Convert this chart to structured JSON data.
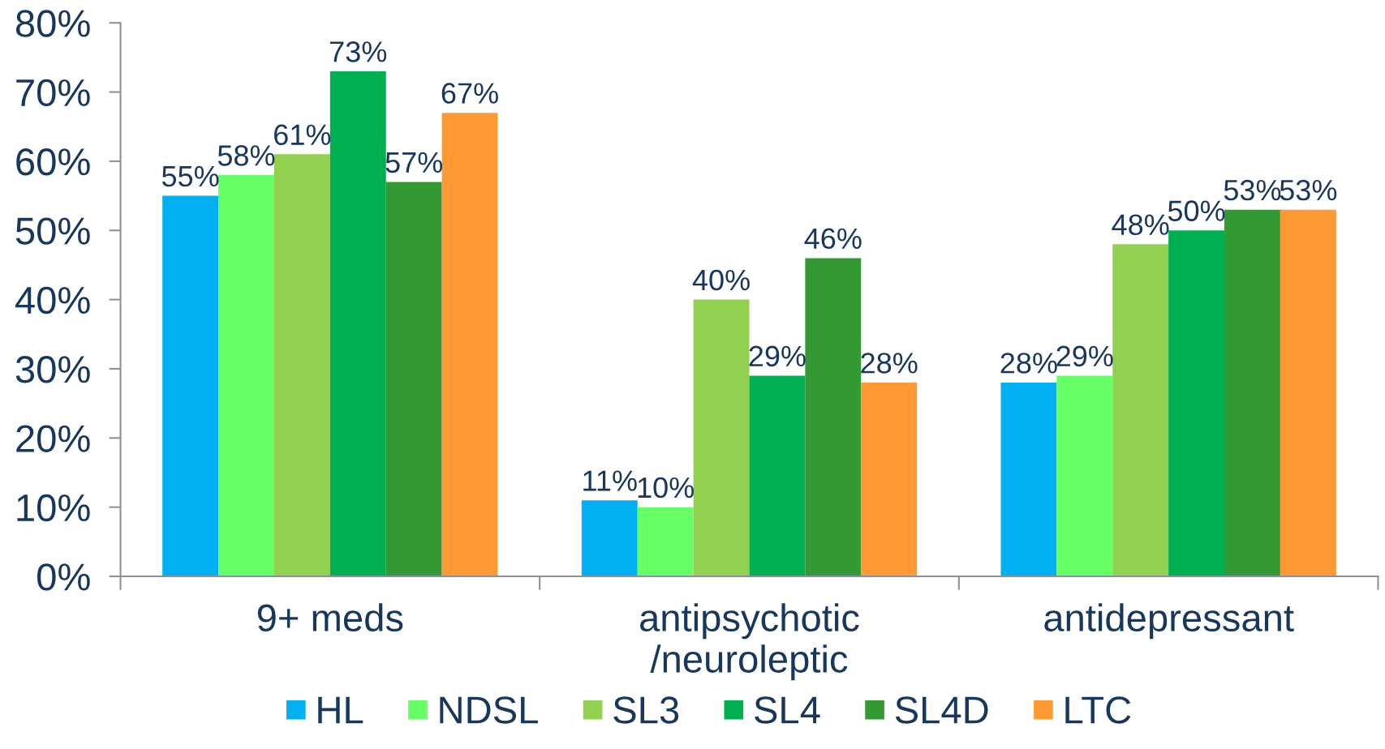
{
  "chart_data": {
    "type": "bar",
    "categories": [
      "9+ meds",
      "antipsychotic\n/neuroleptic",
      "antidepressant"
    ],
    "series": [
      {
        "name": "HL",
        "color": "#00b0f0",
        "values": [
          55,
          11,
          28
        ],
        "value_labels": [
          "55%",
          "11%",
          "28%"
        ]
      },
      {
        "name": "NDSL",
        "color": "#66ff66",
        "values": [
          58,
          10,
          29
        ],
        "value_labels": [
          "58%",
          "10%",
          "29%"
        ]
      },
      {
        "name": "SL3",
        "color": "#92d050",
        "values": [
          61,
          40,
          48
        ],
        "value_labels": [
          "61%",
          "40%",
          "48%"
        ]
      },
      {
        "name": "SL4",
        "color": "#00b050",
        "values": [
          73,
          29,
          50
        ],
        "value_labels": [
          "73%",
          "29%",
          "50%"
        ]
      },
      {
        "name": "SL4D",
        "color": "#339933",
        "values": [
          57,
          46,
          53
        ],
        "value_labels": [
          "57%",
          "46%",
          "53%"
        ]
      },
      {
        "name": "LTC",
        "color": "#ff9933",
        "values": [
          67,
          28,
          53
        ],
        "value_labels": [
          "67%",
          "28%",
          "53%"
        ]
      }
    ],
    "ylim": [
      0,
      80
    ],
    "yticks": [
      {
        "value": 0,
        "label": "0%"
      },
      {
        "value": 10,
        "label": "10%"
      },
      {
        "value": 20,
        "label": "20%"
      },
      {
        "value": 30,
        "label": "30%"
      },
      {
        "value": 40,
        "label": "40%"
      },
      {
        "value": 50,
        "label": "50%"
      },
      {
        "value": 60,
        "label": "60%"
      },
      {
        "value": 70,
        "label": "70%"
      },
      {
        "value": 80,
        "label": "80%"
      }
    ],
    "legend": "bottom"
  }
}
